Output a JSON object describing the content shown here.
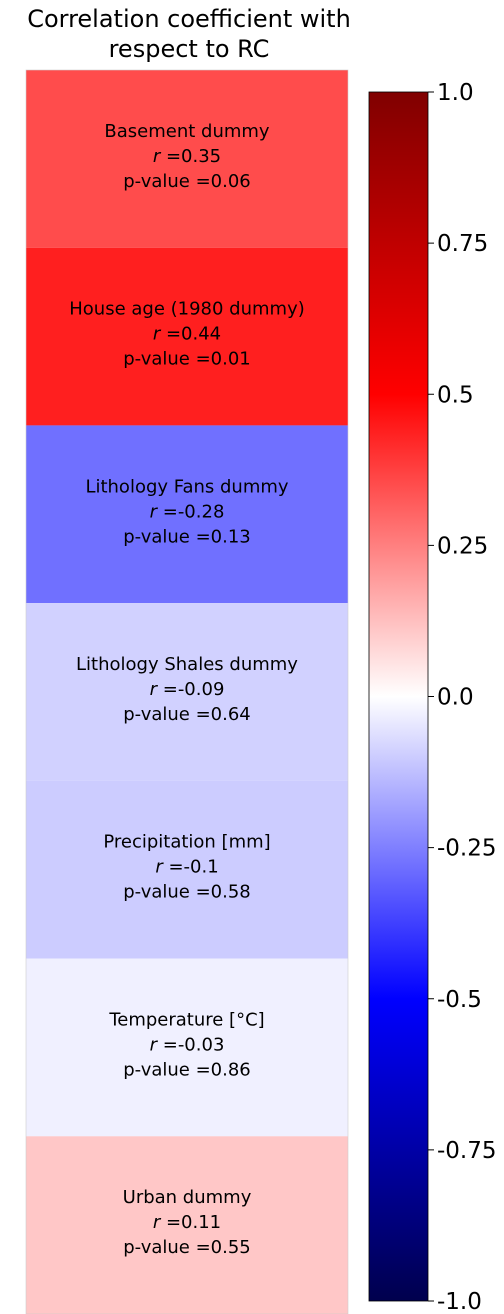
{
  "chart_data": {
    "type": "heatmap",
    "title_lines": [
      "Correlation coefficient with",
      "respect to RC"
    ],
    "cells": [
      {
        "label": "Basement dummy",
        "r": 0.35,
        "r_text": "=0.35",
        "p_text": "p-value =0.06"
      },
      {
        "label": "House age (1980 dummy)",
        "r": 0.44,
        "r_text": "=0.44",
        "p_text": "p-value =0.01"
      },
      {
        "label": "Lithology Fans dummy",
        "r": -0.28,
        "r_text": "=-0.28",
        "p_text": "p-value =0.13"
      },
      {
        "label": "Lithology Shales dummy",
        "r": -0.09,
        "r_text": "=-0.09",
        "p_text": "p-value =0.64"
      },
      {
        "label": "Precipitation [mm]",
        "r": -0.1,
        "r_text": "=-0.1",
        "p_text": "p-value =0.58"
      },
      {
        "label": "Temperature [°C]",
        "r": -0.03,
        "r_text": "=-0.03",
        "p_text": "p-value =0.86"
      },
      {
        "label": "Urban dummy",
        "r": 0.11,
        "r_text": "=0.11",
        "p_text": "p-value =0.55"
      }
    ],
    "r_symbol": "r",
    "colormap": "seismic",
    "colorbar": {
      "vmin": -1.0,
      "vmax": 1.0,
      "ticks": [
        1.0,
        0.75,
        0.5,
        0.25,
        0.0,
        -0.25,
        -0.5,
        -0.75,
        -1.0
      ],
      "tick_labels": [
        "1.0",
        "0.75",
        "0.5",
        "0.25",
        "0.0",
        "-0.25",
        "-0.5",
        "-0.75",
        "-1.0"
      ],
      "position": "right"
    }
  }
}
